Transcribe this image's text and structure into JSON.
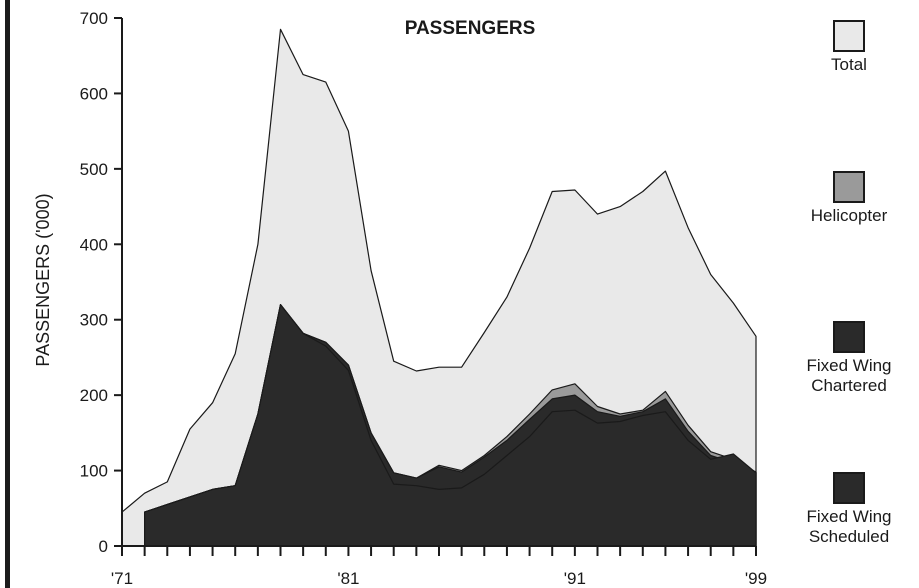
{
  "chart_data": {
    "type": "area",
    "title": "PASSENGERS",
    "ylabel": "PASSENGERS ('000)",
    "xlabel": "",
    "ylim": [
      0,
      700
    ],
    "xlim": [
      1971,
      1999
    ],
    "yticks": [
      0,
      100,
      200,
      300,
      400,
      500,
      600,
      700
    ],
    "xtick_labels": [
      {
        "year": 1971,
        "label": "'71"
      },
      {
        "year": 1981,
        "label": "'81"
      },
      {
        "year": 1991,
        "label": "'91"
      },
      {
        "year": 1999,
        "label": "'99"
      }
    ],
    "x": [
      1971,
      1972,
      1973,
      1974,
      1975,
      1976,
      1977,
      1978,
      1979,
      1980,
      1981,
      1982,
      1983,
      1984,
      1985,
      1986,
      1987,
      1988,
      1989,
      1990,
      1991,
      1992,
      1993,
      1994,
      1995,
      1996,
      1997,
      1998,
      1999
    ],
    "series": [
      {
        "name": "Total",
        "color": "#e9e9e9",
        "values": [
          45,
          70,
          85,
          155,
          190,
          255,
          400,
          685,
          625,
          615,
          550,
          365,
          245,
          232,
          237,
          237,
          283,
          330,
          395,
          470,
          472,
          440,
          450,
          470,
          497,
          422,
          360,
          322,
          278
        ]
      },
      {
        "name": "Helicopter",
        "color": "#9a9a9a",
        "values": [
          null,
          45,
          55,
          65,
          75,
          80,
          175,
          320,
          282,
          270,
          240,
          150,
          97,
          90,
          107,
          100,
          120,
          145,
          175,
          207,
          215,
          185,
          175,
          180,
          205,
          160,
          125,
          115,
          98
        ]
      },
      {
        "name": "Fixed Wing Chartered",
        "color": "#2a2a2a",
        "values": [
          null,
          45,
          55,
          65,
          75,
          80,
          175,
          320,
          282,
          270,
          240,
          150,
          97,
          90,
          105,
          98,
          118,
          140,
          168,
          195,
          200,
          178,
          172,
          178,
          195,
          152,
          120,
          110,
          98
        ]
      },
      {
        "name": "Fixed Wing Scheduled",
        "color": "#2a2a2a",
        "values": [
          null,
          45,
          55,
          65,
          75,
          80,
          175,
          320,
          282,
          265,
          233,
          140,
          82,
          80,
          75,
          77,
          95,
          120,
          145,
          178,
          180,
          163,
          165,
          173,
          178,
          140,
          115,
          122,
          97
        ]
      }
    ],
    "legend": [
      {
        "label": "Total",
        "color": "#e9e9e9"
      },
      {
        "label": "Helicopter",
        "color": "#9a9a9a"
      },
      {
        "label": "Fixed Wing\nChartered",
        "color": "#2a2a2a"
      },
      {
        "label": "Fixed Wing\nScheduled",
        "color": "#2a2a2a"
      }
    ]
  }
}
